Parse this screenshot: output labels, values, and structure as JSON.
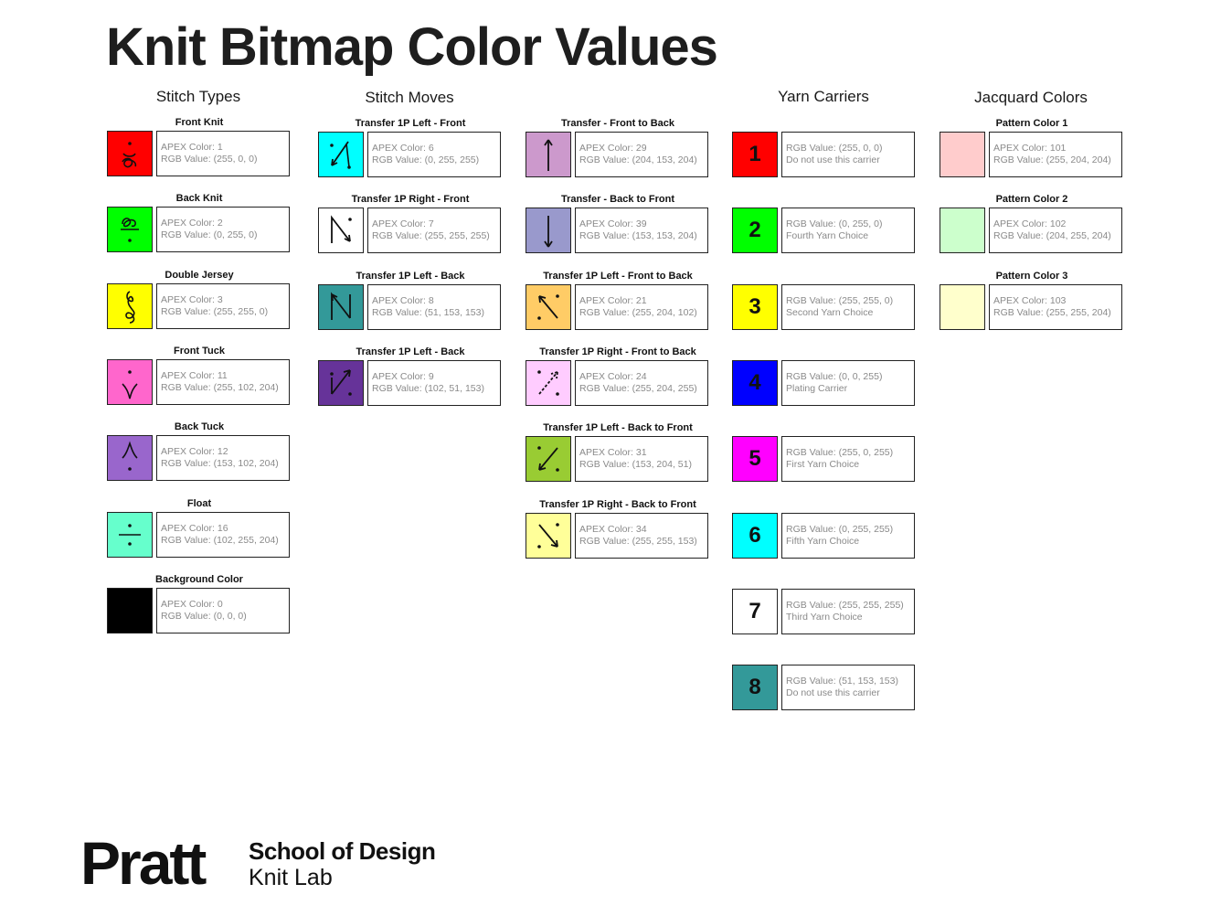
{
  "title": "Knit Bitmap Color Values",
  "columns": {
    "stitch_types": "Stitch Types",
    "stitch_moves": "Stitch Moves",
    "yarn_carriers": "Yarn Carriers",
    "jacquard_colors": "Jacquard Colors"
  },
  "stitch_types": [
    {
      "label": "Front Knit",
      "line1": "APEX Color: 1",
      "line2": "RGB Value: (255, 0, 0)",
      "color": "#ff0000",
      "icon": "front-knit-icon"
    },
    {
      "label": "Back Knit",
      "line1": "APEX Color: 2",
      "line2": "RGB Value: (0, 255, 0)",
      "color": "#00ff00",
      "icon": "back-knit-icon"
    },
    {
      "label": "Double Jersey",
      "line1": "APEX Color: 3",
      "line2": "RGB Value: (255, 255, 0)",
      "color": "#ffff00",
      "icon": "double-jersey-icon"
    },
    {
      "label": "Front Tuck",
      "line1": "APEX Color: 11",
      "line2": "RGB Value: (255, 102, 204)",
      "color": "#ff66cc",
      "icon": "front-tuck-icon"
    },
    {
      "label": "Back Tuck",
      "line1": "APEX Color: 12",
      "line2": "RGB Value: (153, 102, 204)",
      "color": "#9966cc",
      "icon": "back-tuck-icon"
    },
    {
      "label": "Float",
      "line1": "APEX Color: 16",
      "line2": "RGB Value: (102, 255, 204)",
      "color": "#66ffcc",
      "icon": "float-icon"
    },
    {
      "label": "Background Color",
      "line1": "APEX Color: 0",
      "line2": "RGB Value: (0, 0, 0)",
      "color": "#000000",
      "icon": ""
    }
  ],
  "stitch_moves_a": [
    {
      "label": "Transfer 1P Left - Front",
      "line1": "APEX Color: 6",
      "line2": "RGB Value: (0, 255, 255)",
      "color": "#00ffff",
      "icon": "transfer-left-front-icon"
    },
    {
      "label": "Transfer 1P Right - Front",
      "line1": "APEX Color: 7",
      "line2": "RGB Value: (255, 255, 255)",
      "color": "#ffffff",
      "icon": "transfer-right-front-icon"
    },
    {
      "label": "Transfer 1P Left - Back",
      "line1": "APEX Color: 8",
      "line2": "RGB Value: (51, 153, 153)",
      "color": "#339999",
      "icon": "transfer-left-back-icon"
    },
    {
      "label": "Transfer 1P Left - Back",
      "line1": "APEX Color: 9",
      "line2": "RGB Value: (102, 51, 153)",
      "color": "#663399",
      "icon": "transfer-right-back-icon"
    }
  ],
  "stitch_moves_b": [
    {
      "label": "Transfer - Front to Back",
      "line1": "APEX Color: 29",
      "line2": "RGB Value: (204, 153, 204)",
      "color": "#cc99cc",
      "icon": "transfer-front-to-back-icon"
    },
    {
      "label": "Transfer - Back to Front",
      "line1": "APEX Color: 39",
      "line2": "RGB Value: (153, 153, 204)",
      "color": "#9999cc",
      "icon": "transfer-back-to-front-icon"
    },
    {
      "label": "Transfer 1P Left - Front to Back",
      "line1": "APEX Color: 21",
      "line2": "RGB Value: (255, 204, 102)",
      "color": "#ffcc66",
      "icon": "transfer-left-front-to-back-icon"
    },
    {
      "label": "Transfer 1P Right - Front to Back",
      "line1": "APEX Color: 24",
      "line2": "RGB Value: (255, 204, 255)",
      "color": "#ffccff",
      "icon": "transfer-right-front-to-back-icon"
    },
    {
      "label": "Transfer 1P Left - Back to Front",
      "line1": "APEX Color: 31",
      "line2": "RGB Value: (153, 204, 51)",
      "color": "#99cc33",
      "icon": "transfer-left-back-to-front-icon"
    },
    {
      "label": "Transfer 1P Right - Back to Front",
      "line1": "APEX Color: 34",
      "line2": "RGB Value: (255, 255, 153)",
      "color": "#ffff99",
      "icon": "transfer-right-back-to-front-icon"
    }
  ],
  "yarn_carriers": [
    {
      "number": "1",
      "line1": "RGB Value: (255, 0, 0)",
      "line2": "Do not use this carrier",
      "color": "#ff0000"
    },
    {
      "number": "2",
      "line1": "RGB Value: (0, 255, 0)",
      "line2": "Fourth Yarn Choice",
      "color": "#00ff00"
    },
    {
      "number": "3",
      "line1": "RGB Value: (255, 255, 0)",
      "line2": "Second Yarn Choice",
      "color": "#ffff00"
    },
    {
      "number": "4",
      "line1": "RGB Value: (0, 0, 255)",
      "line2": "Plating Carrier",
      "color": "#0000ff"
    },
    {
      "number": "5",
      "line1": "RGB Value: (255, 0, 255)",
      "line2": "First Yarn Choice",
      "color": "#ff00ff"
    },
    {
      "number": "6",
      "line1": "RGB Value: (0, 255, 255)",
      "line2": "Fifth Yarn Choice",
      "color": "#00ffff"
    },
    {
      "number": "7",
      "line1": "RGB Value: (255, 255, 255)",
      "line2": "Third Yarn Choice",
      "color": "#ffffff"
    },
    {
      "number": "8",
      "line1": "RGB Value: (51, 153, 153)",
      "line2": "Do not use this carrier",
      "color": "#339999"
    }
  ],
  "jacquard_colors": [
    {
      "label": "Pattern Color 1",
      "line1": "APEX Color: 101",
      "line2": "RGB Value: (255, 204, 204)",
      "color": "#ffcccc"
    },
    {
      "label": "Pattern Color 2",
      "line1": "APEX Color: 102",
      "line2": "RGB Value: (204, 255, 204)",
      "color": "#ccffcc"
    },
    {
      "label": "Pattern Color 3",
      "line1": "APEX Color: 103",
      "line2": "RGB Value: (255, 255, 204)",
      "color": "#ffffcc"
    }
  ],
  "footer": {
    "logo": "Pratt",
    "school": "School of Design",
    "lab": "Knit Lab"
  }
}
